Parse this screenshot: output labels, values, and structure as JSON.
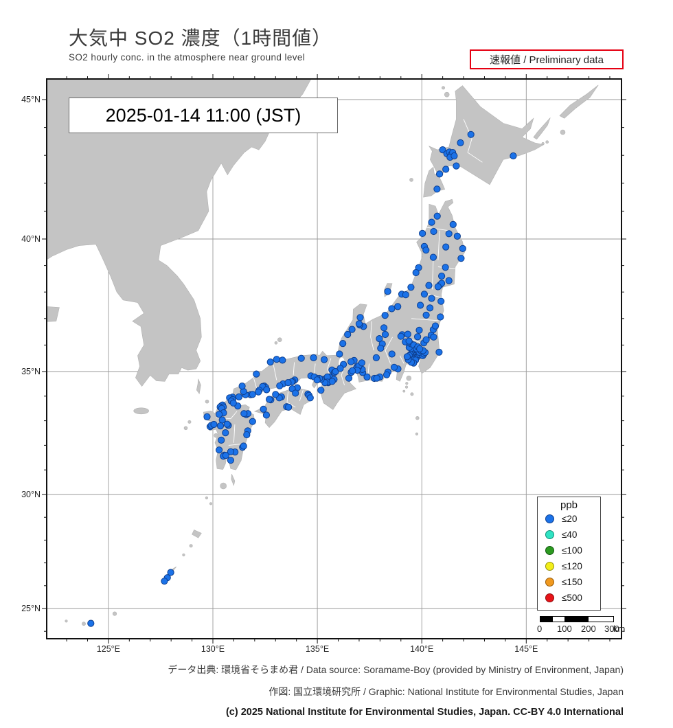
{
  "header": {
    "title": "大気中 SO2 濃度（1時間値）",
    "subtitle": "SO2 hourly conc. in the atmosphere near ground level",
    "preliminary": "速報値 / Preliminary data"
  },
  "timestamp": "2025-01-14  11:00 (JST)",
  "legend": {
    "title": "ppb",
    "entries": [
      {
        "label": "≤20",
        "color": "#1b72e8",
        "stroke": "#0e3f8f"
      },
      {
        "label": "≤40",
        "color": "#2fe3c3",
        "stroke": "#0f8f78"
      },
      {
        "label": "≤100",
        "color": "#2c9a20",
        "stroke": "#145a12"
      },
      {
        "label": "≤120",
        "color": "#f2ee19",
        "stroke": "#93910e"
      },
      {
        "label": "≤150",
        "color": "#f0991f",
        "stroke": "#995b08"
      },
      {
        "label": "≤500",
        "color": "#e71318",
        "stroke": "#8f0a0c"
      }
    ]
  },
  "scalebar": {
    "labels": [
      "0",
      "100",
      "200",
      "300"
    ],
    "unit": "km"
  },
  "axes": {
    "lat": [
      {
        "value": 45,
        "label": "45°N"
      },
      {
        "value": 40,
        "label": "40°N"
      },
      {
        "value": 35,
        "label": "35°N"
      },
      {
        "value": 30,
        "label": "30°N"
      },
      {
        "value": 25,
        "label": "25°N"
      }
    ],
    "lon": [
      {
        "value": 125,
        "label": "125°E"
      },
      {
        "value": 130,
        "label": "130°E"
      },
      {
        "value": 135,
        "label": "135°E"
      },
      {
        "value": 140,
        "label": "140°E"
      },
      {
        "value": 145,
        "label": "145°E"
      }
    ]
  },
  "footer": {
    "line1": "データ出典: 環境省そらまめ君 / Data source: Soramame-Boy (provided by Ministry of Environment, Japan)",
    "line2": "作図: 国立環境研究所 / Graphic: National Institute for Environmental Studies, Japan",
    "line3": "(c) 2025 National Institute for Environmental Studies, Japan. CC-BY 4.0 International"
  },
  "chart_data": {
    "type": "scatter",
    "subtype": "geographic-station-map",
    "parameter": "SO2 hourly concentration",
    "unit": "ppb",
    "datetime": "2025-01-14 11:00 JST",
    "lon_range": [
      122,
      149.5
    ],
    "lat_range": [
      24.4,
      45.75
    ],
    "note": "All plotted stations are in the ≤20 ppb class (blue)",
    "station_value_class": "≤20",
    "stations": [
      [
        142.35,
        43.75
      ],
      [
        141.85,
        43.45
      ],
      [
        141.0,
        43.2
      ],
      [
        141.2,
        43.06
      ],
      [
        141.32,
        43.12
      ],
      [
        141.4,
        43.02
      ],
      [
        141.48,
        43.1
      ],
      [
        141.35,
        42.93
      ],
      [
        141.55,
        42.98
      ],
      [
        141.65,
        42.62
      ],
      [
        140.85,
        42.33
      ],
      [
        144.38,
        42.98
      ],
      [
        140.73,
        41.79
      ],
      [
        141.15,
        42.5
      ],
      [
        140.74,
        40.82
      ],
      [
        141.5,
        40.52
      ],
      [
        140.47,
        40.6
      ],
      [
        141.3,
        40.19
      ],
      [
        140.57,
        40.27
      ],
      [
        140.03,
        40.2
      ],
      [
        141.7,
        40.1
      ],
      [
        140.12,
        39.72
      ],
      [
        140.2,
        39.58
      ],
      [
        141.15,
        39.7
      ],
      [
        141.96,
        39.64
      ],
      [
        141.88,
        39.27
      ],
      [
        141.13,
        38.93
      ],
      [
        140.55,
        39.31
      ],
      [
        140.87,
        38.27
      ],
      [
        140.95,
        38.33
      ],
      [
        140.78,
        38.2
      ],
      [
        141.3,
        38.43
      ],
      [
        140.95,
        38.6
      ],
      [
        140.34,
        38.25
      ],
      [
        139.85,
        38.92
      ],
      [
        139.72,
        38.73
      ],
      [
        140.12,
        37.92
      ],
      [
        140.47,
        37.76
      ],
      [
        140.39,
        37.4
      ],
      [
        139.93,
        37.5
      ],
      [
        140.89,
        37.06
      ],
      [
        140.92,
        37.65
      ],
      [
        140.21,
        37.13
      ],
      [
        138.37,
        38.02
      ],
      [
        139.04,
        37.92
      ],
      [
        139.23,
        37.9
      ],
      [
        139.48,
        38.18
      ],
      [
        138.85,
        37.45
      ],
      [
        138.56,
        37.37
      ],
      [
        138.24,
        37.12
      ],
      [
        139.7,
        35.69
      ],
      [
        139.76,
        35.66
      ],
      [
        139.82,
        35.7
      ],
      [
        139.64,
        35.72
      ],
      [
        139.58,
        35.66
      ],
      [
        139.52,
        35.7
      ],
      [
        139.7,
        35.6
      ],
      [
        139.78,
        35.57
      ],
      [
        139.62,
        35.55
      ],
      [
        139.68,
        35.51
      ],
      [
        139.75,
        35.52
      ],
      [
        139.86,
        35.6
      ],
      [
        139.9,
        35.64
      ],
      [
        139.97,
        35.68
      ],
      [
        140.05,
        35.6
      ],
      [
        140.1,
        35.66
      ],
      [
        140.16,
        35.72
      ],
      [
        139.88,
        35.73
      ],
      [
        139.96,
        35.79
      ],
      [
        140.06,
        35.79
      ],
      [
        139.45,
        35.64
      ],
      [
        139.48,
        35.55
      ],
      [
        139.4,
        35.6
      ],
      [
        139.55,
        35.44
      ],
      [
        139.63,
        35.45
      ],
      [
        139.7,
        35.43
      ],
      [
        139.61,
        35.32
      ],
      [
        139.5,
        35.35
      ],
      [
        139.35,
        35.45
      ],
      [
        139.3,
        35.56
      ],
      [
        139.63,
        35.86
      ],
      [
        139.66,
        35.91
      ],
      [
        139.55,
        35.94
      ],
      [
        139.49,
        35.87
      ],
      [
        139.4,
        35.91
      ],
      [
        139.48,
        36.05
      ],
      [
        139.62,
        36.0
      ],
      [
        139.75,
        35.86
      ],
      [
        139.81,
        35.93
      ],
      [
        139.9,
        35.86
      ],
      [
        139.35,
        36.09
      ],
      [
        139.21,
        36.12
      ],
      [
        139.39,
        36.15
      ],
      [
        140.45,
        36.37
      ],
      [
        140.57,
        36.3
      ],
      [
        140.55,
        36.58
      ],
      [
        140.65,
        36.72
      ],
      [
        140.1,
        36.08
      ],
      [
        140.21,
        36.2
      ],
      [
        139.88,
        36.56
      ],
      [
        139.8,
        36.31
      ],
      [
        139.06,
        36.39
      ],
      [
        139.0,
        36.33
      ],
      [
        139.33,
        36.41
      ],
      [
        140.83,
        35.73
      ],
      [
        138.86,
        35.1
      ],
      [
        138.68,
        35.16
      ],
      [
        138.38,
        34.98
      ],
      [
        138.32,
        34.87
      ],
      [
        137.99,
        34.78
      ],
      [
        137.73,
        34.72
      ],
      [
        137.85,
        34.73
      ],
      [
        137.38,
        34.78
      ],
      [
        137.17,
        34.96
      ],
      [
        137.15,
        35.08
      ],
      [
        136.9,
        35.18
      ],
      [
        136.96,
        35.15
      ],
      [
        136.85,
        35.1
      ],
      [
        136.99,
        35.22
      ],
      [
        136.91,
        35.05
      ],
      [
        136.62,
        34.97
      ],
      [
        136.68,
        35.03
      ],
      [
        136.51,
        34.73
      ],
      [
        136.76,
        35.42
      ],
      [
        136.61,
        35.37
      ],
      [
        137.13,
        35.33
      ],
      [
        137.97,
        36.24
      ],
      [
        138.19,
        36.65
      ],
      [
        138.25,
        36.4
      ],
      [
        138.11,
        36.04
      ],
      [
        137.82,
        35.52
      ],
      [
        138.57,
        35.66
      ],
      [
        137.21,
        36.7
      ],
      [
        137.03,
        36.76
      ],
      [
        136.66,
        36.59
      ],
      [
        136.45,
        36.4
      ],
      [
        136.22,
        36.06
      ],
      [
        136.06,
        35.66
      ],
      [
        137.05,
        37.04
      ],
      [
        137.0,
        36.8
      ],
      [
        138.03,
        35.88
      ],
      [
        135.5,
        34.69
      ],
      [
        135.56,
        34.65
      ],
      [
        135.45,
        34.62
      ],
      [
        135.6,
        34.6
      ],
      [
        135.52,
        34.55
      ],
      [
        135.42,
        34.73
      ],
      [
        135.38,
        34.67
      ],
      [
        135.62,
        34.71
      ],
      [
        135.58,
        34.78
      ],
      [
        135.48,
        34.78
      ],
      [
        135.48,
        34.57
      ],
      [
        135.36,
        34.55
      ],
      [
        135.17,
        34.24
      ],
      [
        135.18,
        34.69
      ],
      [
        135.1,
        34.72
      ],
      [
        134.97,
        34.73
      ],
      [
        134.69,
        34.82
      ],
      [
        134.85,
        34.78
      ],
      [
        134.99,
        34.66
      ],
      [
        135.76,
        35.01
      ],
      [
        135.7,
        35.06
      ],
      [
        135.82,
        34.96
      ],
      [
        135.87,
        35.0
      ],
      [
        135.8,
        34.68
      ],
      [
        135.71,
        34.6
      ],
      [
        135.33,
        35.45
      ],
      [
        134.82,
        35.52
      ],
      [
        134.23,
        35.5
      ],
      [
        133.33,
        35.43
      ],
      [
        133.05,
        35.46
      ],
      [
        132.75,
        35.36
      ],
      [
        136.25,
        35.27
      ],
      [
        136.1,
        35.12
      ],
      [
        133.92,
        34.66
      ],
      [
        133.82,
        34.6
      ],
      [
        133.77,
        34.58
      ],
      [
        133.36,
        34.5
      ],
      [
        133.2,
        34.42
      ],
      [
        132.46,
        34.41
      ],
      [
        132.52,
        34.36
      ],
      [
        132.38,
        34.39
      ],
      [
        132.57,
        34.26
      ],
      [
        132.22,
        34.24
      ],
      [
        132.18,
        34.17
      ],
      [
        131.8,
        34.06
      ],
      [
        131.9,
        34.07
      ],
      [
        131.56,
        34.06
      ],
      [
        131.25,
        33.97
      ],
      [
        130.94,
        33.96
      ],
      [
        131.47,
        34.19
      ],
      [
        132.08,
        34.9
      ],
      [
        131.4,
        34.41
      ],
      [
        133.6,
        34.55
      ],
      [
        134.04,
        34.34
      ],
      [
        133.8,
        34.3
      ],
      [
        133.28,
        33.97
      ],
      [
        133.18,
        33.93
      ],
      [
        133.0,
        34.07
      ],
      [
        132.77,
        33.85
      ],
      [
        132.7,
        33.87
      ],
      [
        132.56,
        33.23
      ],
      [
        132.42,
        33.47
      ],
      [
        133.53,
        33.57
      ],
      [
        133.62,
        33.55
      ],
      [
        134.55,
        34.08
      ],
      [
        134.6,
        34.03
      ],
      [
        134.66,
        33.93
      ],
      [
        133.95,
        34.12
      ],
      [
        130.87,
        33.89
      ],
      [
        130.8,
        33.93
      ],
      [
        130.95,
        33.86
      ],
      [
        130.88,
        33.8
      ],
      [
        130.4,
        33.6
      ],
      [
        130.46,
        33.64
      ],
      [
        130.35,
        33.56
      ],
      [
        130.5,
        33.56
      ],
      [
        130.42,
        33.5
      ],
      [
        130.51,
        33.32
      ],
      [
        130.45,
        33.03
      ],
      [
        130.3,
        33.26
      ],
      [
        129.87,
        32.76
      ],
      [
        129.92,
        32.81
      ],
      [
        129.72,
        33.16
      ],
      [
        130.05,
        32.85
      ],
      [
        130.36,
        32.79
      ],
      [
        130.74,
        32.81
      ],
      [
        130.68,
        32.86
      ],
      [
        130.6,
        32.51
      ],
      [
        130.4,
        32.21
      ],
      [
        131.6,
        33.25
      ],
      [
        131.68,
        33.29
      ],
      [
        131.49,
        33.29
      ],
      [
        131.19,
        33.6
      ],
      [
        131.9,
        32.97
      ],
      [
        131.67,
        32.59
      ],
      [
        131.62,
        32.43
      ],
      [
        131.42,
        31.92
      ],
      [
        131.47,
        31.97
      ],
      [
        131.06,
        31.73
      ],
      [
        130.55,
        31.6
      ],
      [
        130.5,
        31.56
      ],
      [
        130.62,
        31.59
      ],
      [
        130.85,
        31.74
      ],
      [
        130.3,
        31.81
      ],
      [
        130.85,
        31.39
      ],
      [
        130.98,
        33.72
      ],
      [
        127.98,
        26.58
      ],
      [
        127.82,
        26.35
      ],
      [
        127.68,
        26.2
      ],
      [
        124.16,
        24.35
      ]
    ]
  }
}
